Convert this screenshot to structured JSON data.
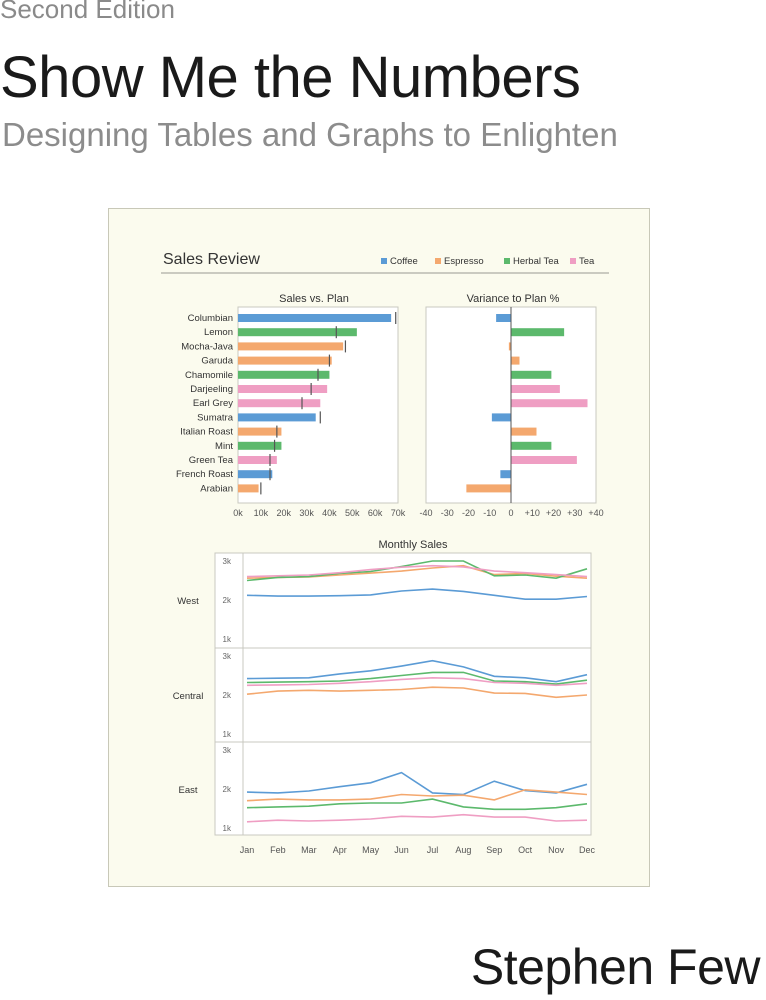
{
  "cover": {
    "edition": "Second Edition",
    "title": "Show Me the Numbers",
    "subtitle": "Designing Tables and Graphs to Enlighten",
    "author": "Stephen Few"
  },
  "colors": {
    "Coffee": "#5b9bd5",
    "Espresso": "#f4a86e",
    "Herbal Tea": "#5cb96c",
    "Tea": "#ef9ec3"
  },
  "dashboard": {
    "title": "Sales Review",
    "legend": [
      "Coffee",
      "Espresso",
      "Herbal Tea",
      "Tea"
    ]
  },
  "chart_data": [
    {
      "type": "bar",
      "title": "Sales vs. Plan",
      "categories": [
        "Columbian",
        "Lemon",
        "Mocha-Java",
        "Garuda",
        "Chamomile",
        "Darjeeling",
        "Earl Grey",
        "Sumatra",
        "Italian Roast",
        "Mint",
        "Green Tea",
        "French Roast",
        "Arabian"
      ],
      "product_type": [
        "Coffee",
        "Herbal Tea",
        "Espresso",
        "Espresso",
        "Herbal Tea",
        "Tea",
        "Tea",
        "Coffee",
        "Espresso",
        "Herbal Tea",
        "Tea",
        "Coffee",
        "Espresso"
      ],
      "values": [
        67000,
        52000,
        46000,
        41000,
        40000,
        39000,
        36000,
        34000,
        19000,
        19000,
        17000,
        15000,
        9000
      ],
      "plan": [
        69000,
        43000,
        47000,
        40000,
        35000,
        32000,
        28000,
        36000,
        17000,
        16000,
        14000,
        14000,
        10000
      ],
      "xticks": [
        "0k",
        "10k",
        "20k",
        "30k",
        "40k",
        "50k",
        "60k",
        "70k"
      ],
      "xlim": [
        0,
        70000
      ]
    },
    {
      "type": "bar",
      "title": "Variance to Plan %",
      "categories": [
        "Columbian",
        "Lemon",
        "Mocha-Java",
        "Garuda",
        "Chamomile",
        "Darjeeling",
        "Earl Grey",
        "Sumatra",
        "Italian Roast",
        "Mint",
        "Green Tea",
        "French Roast",
        "Arabian"
      ],
      "values": [
        -7,
        25,
        -1,
        4,
        19,
        23,
        36,
        -9,
        12,
        19,
        31,
        -5,
        -21
      ],
      "xticks": [
        "-40",
        "-30",
        "-20",
        "-10",
        "0",
        "+10",
        "+20",
        "+30",
        "+40"
      ],
      "xlim": [
        -40,
        40
      ]
    },
    {
      "type": "line",
      "title": "Monthly Sales",
      "x": [
        "Jan",
        "Feb",
        "Mar",
        "Apr",
        "May",
        "Jun",
        "Jul",
        "Aug",
        "Sep",
        "Oct",
        "Nov",
        "Dec"
      ],
      "yticks": [
        "1k",
        "2k",
        "3k"
      ],
      "ylim": [
        1000,
        3000
      ],
      "regions": [
        {
          "name": "West",
          "series": [
            {
              "name": "Coffee",
              "values": [
                2120,
                2100,
                2100,
                2110,
                2130,
                2230,
                2280,
                2220,
                2120,
                2020,
                2020,
                2090
              ]
            },
            {
              "name": "Espresso",
              "values": [
                2560,
                2580,
                2590,
                2640,
                2690,
                2740,
                2820,
                2880,
                2650,
                2680,
                2610,
                2560
              ]
            },
            {
              "name": "Herbal Tea",
              "values": [
                2500,
                2580,
                2600,
                2680,
                2730,
                2860,
                3000,
                3000,
                2620,
                2640,
                2560,
                2800
              ]
            },
            {
              "name": "Tea",
              "values": [
                2600,
                2620,
                2640,
                2700,
                2780,
                2840,
                2880,
                2850,
                2740,
                2700,
                2650,
                2600
              ]
            }
          ]
        },
        {
          "name": "Central",
          "series": [
            {
              "name": "Coffee",
              "values": [
                2420,
                2430,
                2440,
                2540,
                2620,
                2740,
                2880,
                2720,
                2480,
                2440,
                2340,
                2520
              ]
            },
            {
              "name": "Espresso",
              "values": [
                2020,
                2100,
                2120,
                2100,
                2120,
                2140,
                2200,
                2180,
                2050,
                2040,
                1940,
                2000
              ]
            },
            {
              "name": "Herbal Tea",
              "values": [
                2320,
                2330,
                2340,
                2360,
                2420,
                2500,
                2580,
                2580,
                2360,
                2340,
                2280,
                2380
              ]
            },
            {
              "name": "Tea",
              "values": [
                2250,
                2260,
                2270,
                2300,
                2340,
                2400,
                2440,
                2420,
                2320,
                2300,
                2250,
                2300
              ]
            }
          ]
        },
        {
          "name": "East",
          "series": [
            {
              "name": "Coffee",
              "values": [
                1920,
                1900,
                1950,
                2060,
                2160,
                2420,
                1900,
                1860,
                2200,
                1960,
                1900,
                2120
              ]
            },
            {
              "name": "Espresso",
              "values": [
                1700,
                1740,
                1720,
                1720,
                1740,
                1860,
                1820,
                1840,
                1720,
                1980,
                1920,
                1860
              ]
            },
            {
              "name": "Herbal Tea",
              "values": [
                1520,
                1540,
                1560,
                1620,
                1640,
                1640,
                1740,
                1540,
                1480,
                1480,
                1520,
                1620
              ]
            },
            {
              "name": "Tea",
              "values": [
                1160,
                1200,
                1180,
                1200,
                1230,
                1300,
                1280,
                1340,
                1280,
                1280,
                1180,
                1200
              ]
            }
          ]
        }
      ]
    }
  ]
}
